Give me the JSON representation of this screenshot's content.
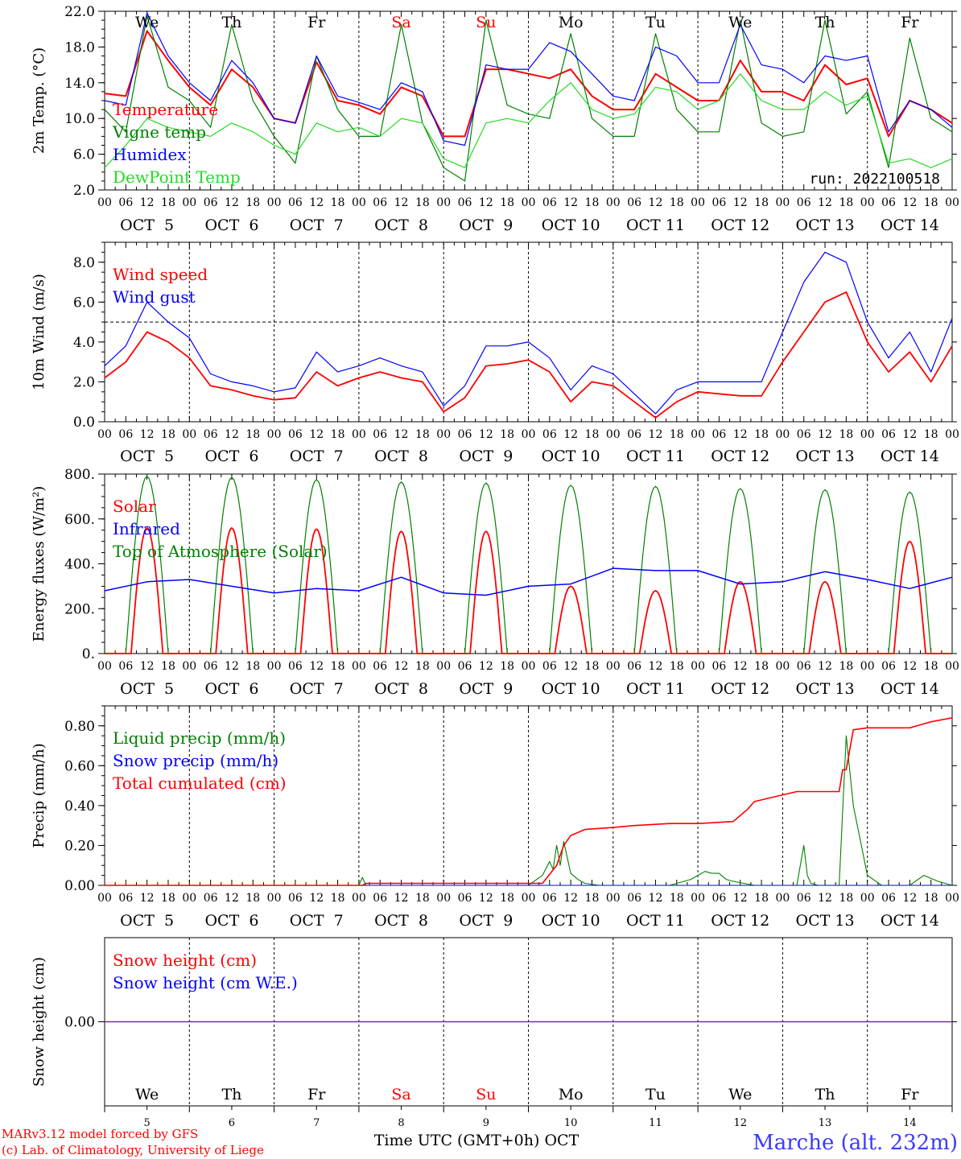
{
  "run_label": "run: 2022100518",
  "footer": {
    "model_line": "MARv3.12 model forced by GFS",
    "credit_line": "(c) Lab. of Climatology, University of Liege",
    "xaxis_title": "Time UTC (GMT+0h) OCT",
    "station": "Marche (alt. 232m)"
  },
  "colors": {
    "red": "#ff0000",
    "dark_green": "#008000",
    "blue": "#0000ff",
    "light_green": "#22dd22",
    "purple": "#7030a0",
    "station_blue": "#3a3aff"
  },
  "days": {
    "names": [
      "We",
      "Th",
      "Fr",
      "Sa",
      "Su",
      "Mo",
      "Tu",
      "We",
      "Th",
      "Fr"
    ],
    "weekend_flags": [
      false,
      false,
      false,
      true,
      true,
      false,
      false,
      false,
      false,
      false
    ],
    "date_labels": [
      "OCT  5",
      "OCT  6",
      "OCT  7",
      "OCT  8",
      "OCT  9",
      "OCT 10",
      "OCT 11",
      "OCT 12",
      "OCT 13",
      "OCT 14"
    ],
    "day_numbers": [
      "5",
      "6",
      "7",
      "8",
      "9",
      "10",
      "11",
      "12",
      "13",
      "14"
    ],
    "hour_labels": [
      "00",
      "06",
      "12",
      "18"
    ],
    "final_hour_label": "00"
  },
  "chart_data": [
    {
      "id": "temperature",
      "type": "line",
      "ylabel": "2m Temp. (°C)",
      "ylim": [
        2.0,
        22.0
      ],
      "yticks": [
        2.0,
        6.0,
        10.0,
        14.0,
        18.0,
        22.0
      ],
      "ytick_labels": [
        "2.0",
        "6.0",
        "10.0",
        "14.0",
        "18.0",
        "22.0"
      ],
      "x_unit": "hours since 00 UTC OCT 5",
      "x": [
        0,
        6,
        12,
        18,
        24,
        30,
        36,
        42,
        48,
        54,
        60,
        66,
        72,
        78,
        84,
        90,
        96,
        102,
        108,
        114,
        120,
        126,
        132,
        138,
        144,
        150,
        156,
        162,
        168,
        174,
        180,
        186,
        192,
        198,
        204,
        210,
        216,
        222,
        228,
        234,
        240
      ],
      "series": [
        {
          "name": "Temperature",
          "color": "#ff0000",
          "values": [
            12.8,
            12.5,
            19.8,
            16.5,
            13.5,
            11.5,
            15.5,
            13.5,
            10.0,
            9.5,
            16.3,
            12.0,
            11.5,
            10.5,
            13.5,
            12.5,
            8.0,
            8.0,
            15.5,
            15.5,
            15.0,
            14.5,
            15.5,
            12.5,
            11.0,
            11.0,
            15.0,
            13.5,
            12.0,
            12.0,
            16.5,
            13.0,
            13.0,
            12.0,
            16.0,
            13.8,
            14.5,
            8.0,
            12.0,
            11.0,
            9.5
          ]
        },
        {
          "name": "Vigne temp",
          "color": "#008000",
          "values": [
            11.0,
            8.5,
            21.5,
            13.5,
            12.0,
            9.0,
            20.5,
            12.0,
            8.0,
            5.0,
            17.0,
            11.0,
            8.0,
            8.0,
            20.5,
            9.5,
            4.5,
            3.0,
            21.0,
            11.5,
            10.5,
            10.0,
            19.5,
            10.0,
            8.0,
            8.0,
            19.5,
            11.0,
            8.5,
            8.5,
            21.0,
            9.5,
            8.0,
            8.5,
            21.0,
            10.5,
            13.0,
            4.5,
            19.0,
            10.0,
            8.5
          ]
        },
        {
          "name": "Humidex",
          "color": "#0000ff",
          "values": [
            12.0,
            11.5,
            21.8,
            17.0,
            14.0,
            12.0,
            16.5,
            14.0,
            10.0,
            9.5,
            17.0,
            12.5,
            11.8,
            11.0,
            14.0,
            13.0,
            7.5,
            7.0,
            16.0,
            15.5,
            15.5,
            18.5,
            17.5,
            15.0,
            12.5,
            12.0,
            18.0,
            17.0,
            14.0,
            14.0,
            20.5,
            16.0,
            15.5,
            14.0,
            17.0,
            16.5,
            17.0,
            8.5,
            12.0,
            11.0,
            9.0
          ]
        },
        {
          "name": "DewPoint Temp",
          "color": "#22dd22",
          "values": [
            4.5,
            7.0,
            10.0,
            9.0,
            8.5,
            8.0,
            9.5,
            8.5,
            7.0,
            6.0,
            9.5,
            8.5,
            9.0,
            8.0,
            10.0,
            9.5,
            5.5,
            4.5,
            9.5,
            10.0,
            9.5,
            12.0,
            14.0,
            11.0,
            10.0,
            10.5,
            13.5,
            13.0,
            11.0,
            12.0,
            15.0,
            12.0,
            11.0,
            11.0,
            13.0,
            11.5,
            12.5,
            5.0,
            5.5,
            4.5,
            5.5
          ]
        }
      ]
    },
    {
      "id": "wind",
      "type": "line",
      "ylabel": "10m Wind (m/s)",
      "ylim": [
        0.0,
        9.0
      ],
      "yticks": [
        0.0,
        2.0,
        4.0,
        6.0,
        8.0
      ],
      "ytick_labels": [
        "0.0",
        "2.0",
        "4.0",
        "6.0",
        "8.0"
      ],
      "reference_line": 5.0,
      "x_unit": "hours since 00 UTC OCT 5",
      "x": [
        0,
        6,
        12,
        18,
        24,
        30,
        36,
        42,
        48,
        54,
        60,
        66,
        72,
        78,
        84,
        90,
        96,
        102,
        108,
        114,
        120,
        126,
        132,
        138,
        144,
        150,
        156,
        162,
        168,
        174,
        180,
        186,
        192,
        198,
        204,
        210,
        216,
        222,
        228,
        234,
        240
      ],
      "series": [
        {
          "name": "Wind speed",
          "color": "#ff0000",
          "values": [
            2.2,
            3.0,
            4.5,
            4.0,
            3.2,
            1.8,
            1.6,
            1.3,
            1.1,
            1.2,
            2.5,
            1.8,
            2.2,
            2.5,
            2.2,
            2.0,
            0.5,
            1.2,
            2.8,
            2.9,
            3.1,
            2.5,
            1.0,
            2.0,
            1.8,
            1.0,
            0.2,
            1.0,
            1.5,
            1.4,
            1.3,
            1.3,
            3.0,
            4.5,
            6.0,
            6.5,
            4.0,
            2.5,
            3.5,
            2.0,
            3.8
          ]
        },
        {
          "name": "Wind gust",
          "color": "#0000ff",
          "values": [
            2.8,
            3.8,
            6.0,
            5.0,
            4.2,
            2.4,
            2.0,
            1.8,
            1.5,
            1.7,
            3.5,
            2.5,
            2.8,
            3.2,
            2.8,
            2.5,
            0.8,
            1.8,
            3.8,
            3.8,
            4.0,
            3.2,
            1.6,
            2.8,
            2.4,
            1.4,
            0.4,
            1.6,
            2.0,
            2.0,
            2.0,
            2.0,
            4.5,
            7.0,
            8.5,
            8.0,
            5.0,
            3.2,
            4.5,
            2.5,
            5.2
          ]
        }
      ]
    },
    {
      "id": "energy",
      "type": "line",
      "ylabel": "Energy fluxes (W/m²)",
      "ylim": [
        0,
        800
      ],
      "yticks": [
        0,
        200,
        400,
        600,
        800
      ],
      "ytick_labels": [
        "0.",
        "200.",
        "400.",
        "600.",
        "800."
      ],
      "daily_peaks": {
        "Top of Atmosphere (Solar)": [
          790,
          785,
          775,
          765,
          760,
          750,
          745,
          735,
          730,
          720
        ],
        "Solar": [
          560,
          560,
          555,
          545,
          545,
          300,
          280,
          320,
          320,
          500
        ]
      },
      "daylight_hours_utc": [
        6.0,
        18.0
      ],
      "series": [
        {
          "name": "Solar",
          "color": "#ff0000"
        },
        {
          "name": "Infrared",
          "color": "#0000ff",
          "x": [
            0,
            12,
            24,
            36,
            48,
            60,
            72,
            84,
            96,
            108,
            120,
            132,
            144,
            156,
            168,
            180,
            192,
            204,
            216,
            228,
            240
          ],
          "values": [
            280,
            320,
            330,
            300,
            270,
            290,
            280,
            340,
            270,
            260,
            300,
            310,
            380,
            370,
            370,
            310,
            320,
            365,
            330,
            290,
            340
          ]
        },
        {
          "name": "Top of Atmosphere (Solar)",
          "color": "#008000"
        }
      ]
    },
    {
      "id": "precip",
      "type": "line",
      "ylabel": "Precip (mm/h)",
      "ylim": [
        0.0,
        0.9
      ],
      "yticks": [
        0.0,
        0.2,
        0.4,
        0.6,
        0.8
      ],
      "ytick_labels": [
        "0.00",
        "0.20",
        "0.40",
        "0.60",
        "0.80"
      ],
      "series": [
        {
          "name": "Liquid precip (mm/h)",
          "color": "#008000",
          "x": [
            0,
            72,
            73,
            74,
            120,
            124,
            126,
            127,
            128,
            129,
            130,
            132,
            134,
            136,
            140,
            160,
            166,
            168,
            170,
            172,
            174,
            176,
            178,
            184,
            196,
            198,
            199,
            200,
            202,
            208,
            210,
            212,
            216,
            220,
            228,
            232,
            236,
            240
          ],
          "values": [
            0,
            0,
            0.04,
            0,
            0,
            0.05,
            0.12,
            0.08,
            0.2,
            0.1,
            0.22,
            0.06,
            0.03,
            0.01,
            0,
            0,
            0.03,
            0.05,
            0.07,
            0.06,
            0.06,
            0.03,
            0.02,
            0.0,
            0.0,
            0.2,
            0.05,
            0.01,
            0,
            0.0,
            0.75,
            0.4,
            0.05,
            0.0,
            0.0,
            0.05,
            0.02,
            0.0
          ]
        },
        {
          "name": "Snow precip (mm/h)",
          "color": "#0000ff",
          "x": [
            0,
            240
          ],
          "values": [
            0,
            0
          ]
        },
        {
          "name": "Total cumulated (cm)",
          "color": "#ff0000",
          "x": [
            0,
            73,
            74,
            124,
            128,
            130,
            132,
            136,
            144,
            150,
            160,
            168,
            178,
            182,
            184,
            196,
            198,
            200,
            208,
            209,
            210,
            212,
            216,
            228,
            234,
            240
          ],
          "values": [
            0,
            0,
            0.01,
            0.01,
            0.1,
            0.2,
            0.25,
            0.28,
            0.29,
            0.3,
            0.31,
            0.31,
            0.32,
            0.38,
            0.42,
            0.47,
            0.47,
            0.47,
            0.47,
            0.58,
            0.58,
            0.78,
            0.79,
            0.79,
            0.82,
            0.84
          ]
        }
      ]
    },
    {
      "id": "snow",
      "type": "line",
      "ylabel": "Snow height (cm)",
      "ylim": [
        -1,
        1
      ],
      "yticks": [
        0.0
      ],
      "ytick_labels": [
        "0.00"
      ],
      "series": [
        {
          "name": "Snow height (cm)",
          "color": "#ff0000",
          "x": [
            0,
            240
          ],
          "values": [
            0,
            0
          ]
        },
        {
          "name": "Snow height (cm W.E.)",
          "color": "#0000ff",
          "x": [
            0,
            240
          ],
          "values": [
            0,
            0
          ]
        }
      ]
    }
  ]
}
